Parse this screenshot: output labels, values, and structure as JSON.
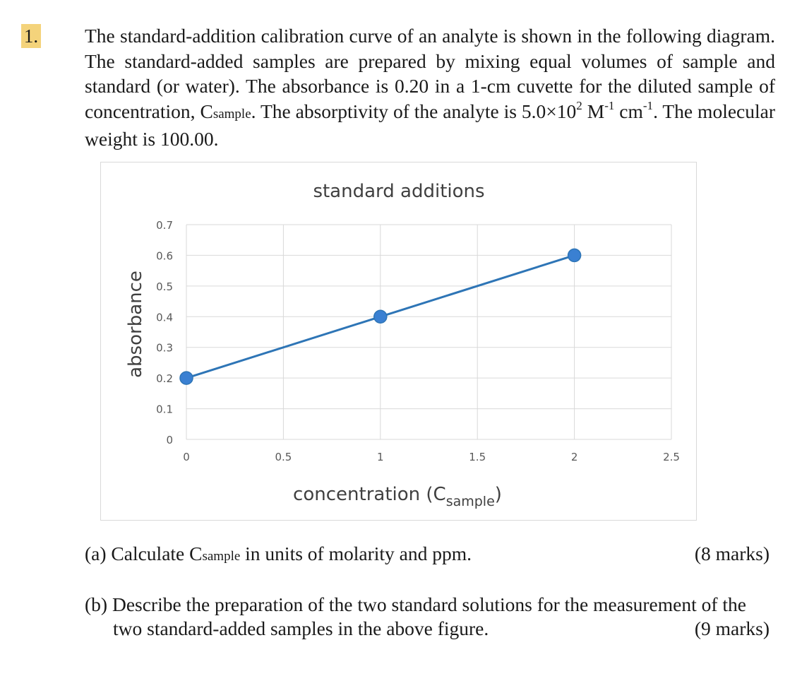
{
  "question": {
    "number": "1.",
    "intro_1": "The standard-addition calibration curve of an analyte is shown in the following diagram. The standard-added samples are prepared by mixing equal volumes of sample and standard (or water). The absorbance is 0.20 in a 1-cm cuvette for the diluted sample of concentration, C",
    "subscript_1": "sample",
    "intro_2": ". The absorptivity of the analyte is 5.0×10",
    "sup_exp": "2",
    "intro_3": " M",
    "sup_m": "-1",
    "intro_4": " cm",
    "sup_cm": "-1",
    "intro_5": ". The molecular weight is 100.00."
  },
  "chart_data": {
    "type": "line",
    "title": "standard additions",
    "xlabel_main": "concentration (C",
    "xlabel_sub": "sample",
    "xlabel_end": ")",
    "ylabel": "absorbance",
    "x_ticks": [
      "0",
      "0.5",
      "1",
      "1.5",
      "2",
      "2.5"
    ],
    "y_ticks": [
      "0",
      "0.1",
      "0.2",
      "0.3",
      "0.4",
      "0.5",
      "0.6",
      "0.7"
    ],
    "xlim": [
      0,
      2.5
    ],
    "ylim": [
      0,
      0.7
    ],
    "grid": true,
    "x": [
      0,
      1,
      2
    ],
    "y": [
      0.2,
      0.4,
      0.6
    ],
    "line_color": "#2e75b6",
    "marker_color": "#3a80d2"
  },
  "parts": {
    "a_label": "(a)",
    "a_text_1": "Calculate C",
    "a_sub": "sample",
    "a_text_2": " in units of molarity and ppm.",
    "a_marks": "(8 marks)",
    "b_label": "(b)",
    "b_line1": "Describe the preparation of the two standard solutions for the measurement of the",
    "b_line2": "two standard-added samples in the above figure.",
    "b_marks": "(9 marks)"
  }
}
